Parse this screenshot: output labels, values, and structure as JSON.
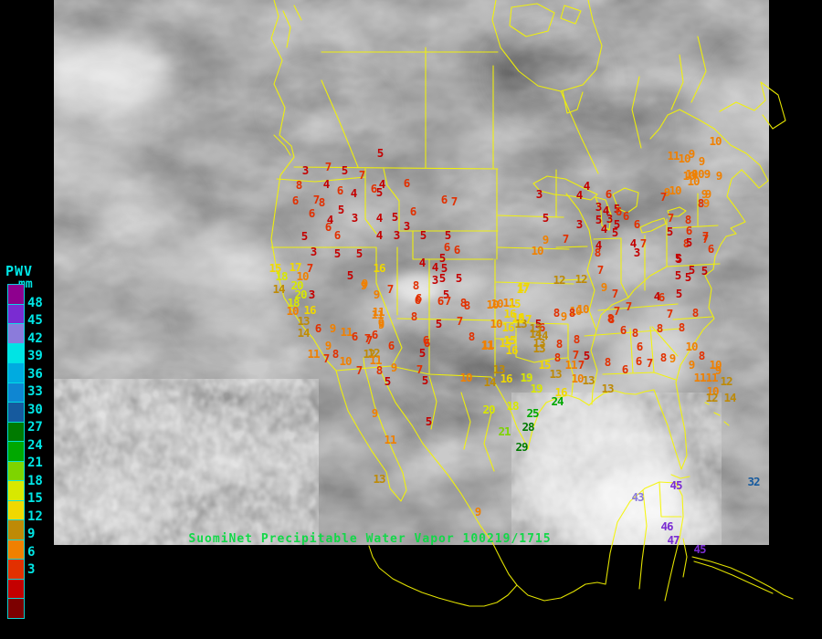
{
  "title": {
    "text": "SuomiNet Precipitable Water Vapor 100219/1715",
    "color": "#12D848"
  },
  "legend": {
    "heading": "PWV",
    "unit": "mm",
    "text_color": "#00E6E6",
    "labels": [
      "48",
      "45",
      "42",
      "39",
      "36",
      "33",
      "30",
      "27",
      "24",
      "21",
      "18",
      "15",
      "12",
      "9",
      "6",
      "3"
    ],
    "boxes": [
      "#8E008E",
      "#7A2CD2",
      "#8B7BDB",
      "#00E4E4",
      "#00ABE0",
      "#0F86D2",
      "#165A9E",
      "#007A00",
      "#00A800",
      "#7ED400",
      "#D8E800",
      "#F0D800",
      "#BE8A06",
      "#F08000",
      "#E23000",
      "#C40000",
      "#7C0000"
    ]
  },
  "map": {
    "background": "#000000",
    "border_color": "#F5F500",
    "satellite_base_gray": "#8B8B8B"
  },
  "stations": [
    [
      5,
      416,
      168
    ],
    [
      7,
      359,
      183
    ],
    [
      3,
      334,
      187
    ],
    [
      5,
      377,
      187
    ],
    [
      7,
      396,
      192
    ],
    [
      4,
      357,
      202
    ],
    [
      6,
      372,
      209
    ],
    [
      4,
      418,
      202
    ],
    [
      6,
      409,
      207
    ],
    [
      6,
      445,
      201
    ],
    [
      5,
      415,
      211
    ],
    [
      4,
      387,
      212
    ],
    [
      8,
      327,
      203
    ],
    [
      6,
      323,
      220
    ],
    [
      7,
      346,
      219
    ],
    [
      8,
      352,
      222
    ],
    [
      6,
      341,
      234
    ],
    [
      5,
      373,
      230
    ],
    [
      3,
      388,
      239
    ],
    [
      4,
      361,
      241
    ],
    [
      6,
      359,
      249
    ],
    [
      4,
      415,
      239
    ],
    [
      5,
      432,
      238
    ],
    [
      3,
      445,
      248
    ],
    [
      4,
      415,
      258
    ],
    [
      3,
      434,
      258
    ],
    [
      5,
      463,
      258
    ],
    [
      5,
      333,
      259
    ],
    [
      6,
      369,
      258
    ],
    [
      3,
      343,
      276
    ],
    [
      5,
      369,
      278
    ],
    [
      5,
      393,
      278
    ],
    [
      6,
      489,
      271
    ],
    [
      5,
      490,
      258
    ],
    [
      6,
      452,
      232
    ],
    [
      6,
      486,
      219
    ],
    [
      7,
      497,
      221
    ],
    [
      10,
      588,
      275
    ],
    [
      6,
      500,
      274
    ],
    [
      4,
      462,
      288
    ],
    [
      5,
      484,
      283
    ],
    [
      4,
      476,
      293
    ],
    [
      5,
      486,
      294
    ],
    [
      3,
      476,
      307
    ],
    [
      5,
      484,
      305
    ],
    [
      5,
      502,
      305
    ],
    [
      5,
      488,
      323
    ],
    [
      6,
      482,
      330
    ],
    [
      7,
      490,
      330
    ],
    [
      8,
      507,
      332
    ],
    [
      8,
      455,
      313
    ],
    [
      6,
      458,
      327
    ],
    [
      9,
      398,
      313
    ],
    [
      7,
      427,
      317
    ],
    [
      9,
      412,
      323
    ],
    [
      16,
      415,
      294
    ],
    [
      17,
      572,
      317
    ],
    [
      10,
      544,
      333
    ],
    [
      11,
      557,
      332
    ],
    [
      15,
      563,
      333
    ],
    [
      16,
      567,
      348
    ],
    [
      17,
      575,
      350
    ],
    [
      13,
      570,
      355
    ],
    [
      10,
      543,
      355
    ],
    [
      16,
      556,
      359
    ],
    [
      5,
      589,
      355
    ],
    [
      6,
      593,
      359
    ],
    [
      11,
      413,
      345
    ],
    [
      9,
      417,
      356
    ],
    [
      6,
      410,
      367
    ],
    [
      7,
      404,
      373
    ],
    [
      12,
      409,
      387
    ],
    [
      6,
      466,
      373
    ],
    [
      5,
      462,
      387
    ],
    [
      5,
      480,
      355
    ],
    [
      7,
      503,
      352
    ],
    [
      8,
      516,
      369
    ],
    [
      11,
      534,
      378
    ],
    [
      15,
      553,
      376
    ],
    [
      13,
      590,
      376
    ],
    [
      14,
      593,
      368
    ],
    [
      10,
      510,
      414
    ],
    [
      14,
      536,
      419
    ],
    [
      13,
      546,
      405
    ],
    [
      16,
      554,
      415
    ],
    [
      19,
      576,
      414
    ],
    [
      19,
      587,
      426
    ],
    [
      18,
      561,
      445
    ],
    [
      20,
      535,
      449
    ],
    [
      21,
      552,
      473
    ],
    [
      25,
      583,
      453
    ],
    [
      28,
      578,
      468
    ],
    [
      29,
      571,
      490
    ],
    [
      24,
      610,
      440
    ],
    [
      16,
      614,
      430
    ],
    [
      15,
      596,
      400
    ],
    [
      13,
      608,
      410
    ],
    [
      13,
      590,
      382
    ],
    [
      15,
      558,
      373
    ],
    [
      16,
      560,
      384
    ],
    [
      11,
      533,
      379
    ],
    [
      8,
      610,
      392
    ],
    [
      11,
      625,
      400
    ],
    [
      7,
      636,
      400
    ],
    [
      8,
      612,
      377
    ],
    [
      8,
      631,
      372
    ],
    [
      13,
      644,
      417
    ],
    [
      10,
      632,
      415
    ],
    [
      13,
      665,
      426
    ],
    [
      8,
      511,
      335
    ],
    [
      10,
      539,
      334
    ],
    [
      16,
      558,
      344
    ],
    [
      15,
      567,
      349
    ],
    [
      13,
      586,
      360
    ],
    [
      14,
      586,
      366
    ],
    [
      10,
      630,
      341
    ],
    [
      9,
      617,
      347
    ],
    [
      7,
      675,
      341
    ],
    [
      8,
      669,
      350
    ],
    [
      6,
      682,
      362
    ],
    [
      5,
      642,
      390
    ],
    [
      7,
      630,
      389
    ],
    [
      8,
      665,
      397
    ],
    [
      6,
      684,
      405
    ],
    [
      7,
      733,
      344
    ],
    [
      8,
      722,
      360
    ],
    [
      8,
      746,
      359
    ],
    [
      8,
      695,
      365
    ],
    [
      6,
      700,
      380
    ],
    [
      6,
      699,
      396
    ],
    [
      7,
      711,
      398
    ],
    [
      8,
      726,
      392
    ],
    [
      9,
      736,
      393
    ],
    [
      10,
      757,
      380
    ],
    [
      8,
      768,
      390
    ],
    [
      9,
      757,
      400
    ],
    [
      10,
      783,
      400
    ],
    [
      9,
      786,
      406
    ],
    [
      11,
      766,
      414
    ],
    [
      11,
      779,
      414
    ],
    [
      12,
      795,
      418
    ],
    [
      10,
      780,
      429
    ],
    [
      12,
      779,
      436
    ],
    [
      14,
      799,
      436
    ],
    [
      8,
      761,
      343
    ],
    [
      3,
      590,
      213
    ],
    [
      4,
      642,
      204
    ],
    [
      4,
      634,
      214
    ],
    [
      6,
      666,
      213
    ],
    [
      5,
      597,
      239
    ],
    [
      3,
      655,
      227
    ],
    [
      4,
      663,
      231
    ],
    [
      5,
      675,
      229
    ],
    [
      6,
      677,
      232
    ],
    [
      5,
      655,
      241
    ],
    [
      3,
      667,
      240
    ],
    [
      6,
      685,
      237
    ],
    [
      3,
      634,
      246
    ],
    [
      4,
      661,
      251
    ],
    [
      5,
      675,
      246
    ],
    [
      5,
      673,
      255
    ],
    [
      6,
      697,
      246
    ],
    [
      4,
      655,
      269
    ],
    [
      7,
      704,
      267
    ],
    [
      4,
      693,
      267
    ],
    [
      3,
      697,
      277
    ],
    [
      8,
      654,
      277
    ],
    [
      9,
      597,
      263
    ],
    [
      7,
      619,
      262
    ],
    [
      7,
      657,
      296
    ],
    [
      9,
      661,
      315
    ],
    [
      12,
      612,
      307
    ],
    [
      12,
      636,
      306
    ],
    [
      17,
      573,
      315
    ],
    [
      10,
      638,
      339
    ],
    [
      8,
      609,
      343
    ],
    [
      8,
      626,
      343
    ],
    [
      7,
      673,
      322
    ],
    [
      7,
      688,
      336
    ],
    [
      8,
      668,
      349
    ],
    [
      4,
      719,
      325
    ],
    [
      6,
      724,
      326
    ],
    [
      5,
      742,
      302
    ],
    [
      5,
      743,
      322
    ],
    [
      5,
      771,
      297
    ],
    [
      5,
      753,
      304
    ],
    [
      8,
      753,
      241
    ],
    [
      7,
      734,
      239
    ],
    [
      5,
      733,
      254
    ],
    [
      8,
      751,
      267
    ],
    [
      5,
      742,
      283
    ],
    [
      7,
      772,
      259
    ],
    [
      9,
      773,
      223
    ],
    [
      10,
      754,
      193
    ],
    [
      10,
      764,
      191
    ],
    [
      9,
      771,
      213
    ],
    [
      10,
      739,
      209
    ],
    [
      10,
      783,
      155
    ],
    [
      11,
      737,
      171
    ],
    [
      10,
      749,
      174
    ],
    [
      9,
      757,
      169
    ],
    [
      9,
      768,
      177
    ],
    [
      10,
      757,
      191
    ],
    [
      10,
      759,
      199
    ],
    [
      9,
      774,
      191
    ],
    [
      9,
      787,
      193
    ],
    [
      9,
      730,
      211
    ],
    [
      7,
      726,
      216
    ],
    [
      9,
      775,
      213
    ],
    [
      8,
      767,
      223
    ],
    [
      6,
      754,
      253
    ],
    [
      5,
      754,
      266
    ],
    [
      7,
      772,
      262
    ],
    [
      6,
      778,
      273
    ],
    [
      5,
      743,
      284
    ],
    [
      5,
      757,
      296
    ],
    [
      15,
      301,
      294
    ],
    [
      17,
      323,
      293
    ],
    [
      7,
      339,
      294
    ],
    [
      18,
      308,
      303
    ],
    [
      10,
      331,
      303
    ],
    [
      20,
      325,
      313
    ],
    [
      14,
      305,
      317
    ],
    [
      20,
      329,
      323
    ],
    [
      3,
      341,
      323
    ],
    [
      18,
      321,
      332
    ],
    [
      16,
      339,
      340
    ],
    [
      10,
      320,
      341
    ],
    [
      13,
      332,
      352
    ],
    [
      14,
      332,
      365
    ],
    [
      6,
      348,
      360
    ],
    [
      9,
      364,
      360
    ],
    [
      11,
      379,
      364
    ],
    [
      6,
      388,
      369
    ],
    [
      7,
      402,
      371
    ],
    [
      9,
      359,
      379
    ],
    [
      11,
      343,
      388
    ],
    [
      7,
      357,
      393
    ],
    [
      8,
      367,
      388
    ],
    [
      10,
      378,
      396
    ],
    [
      12,
      404,
      388
    ],
    [
      11,
      411,
      395
    ],
    [
      9,
      431,
      403
    ],
    [
      8,
      415,
      406
    ],
    [
      7,
      393,
      406
    ],
    [
      9,
      399,
      311
    ],
    [
      5,
      383,
      302
    ],
    [
      6,
      457,
      329
    ],
    [
      8,
      453,
      347
    ],
    [
      11,
      414,
      342
    ],
    [
      9,
      417,
      354
    ],
    [
      6,
      428,
      379
    ],
    [
      6,
      467,
      376
    ],
    [
      7,
      459,
      405
    ],
    [
      5,
      465,
      417
    ],
    [
      5,
      424,
      418
    ],
    [
      9,
      410,
      453
    ],
    [
      5,
      469,
      462
    ],
    [
      11,
      427,
      482
    ],
    [
      13,
      415,
      525
    ],
    [
      9,
      523,
      561
    ],
    [
      45,
      740,
      532
    ],
    [
      43,
      698,
      545
    ],
    [
      46,
      730,
      577
    ],
    [
      47,
      737,
      592
    ],
    [
      45,
      766,
      602
    ],
    [
      32,
      825,
      528
    ]
  ]
}
